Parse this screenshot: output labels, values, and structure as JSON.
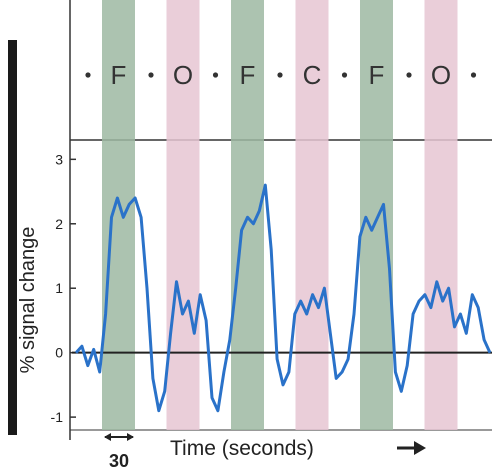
{
  "chart_data": {
    "type": "line",
    "title": "",
    "ylabel": "% signal change",
    "xlabel": "Time (seconds)",
    "time_scale_label": "30",
    "ylim": [
      -1.2,
      3.3
    ],
    "yticks": [
      -1,
      0,
      1,
      2,
      3
    ],
    "grid": false,
    "blocks": [
      {
        "condition": "F",
        "color": "#9eb8a2"
      },
      {
        "condition": "O",
        "color": "#e6c6d2"
      },
      {
        "condition": "F",
        "color": "#9eb8a2"
      },
      {
        "condition": "C",
        "color": "#e6c6d2"
      },
      {
        "condition": "F",
        "color": "#9eb8a2"
      },
      {
        "condition": "O",
        "color": "#e6c6d2"
      }
    ],
    "series": [
      {
        "color": "#2a72c9",
        "x": [
          0,
          6,
          12,
          18,
          24,
          30,
          36,
          42,
          48,
          54,
          60,
          66,
          72,
          78,
          84,
          90,
          96,
          102,
          108,
          114,
          120,
          126,
          132,
          138,
          144,
          150,
          156,
          162,
          168,
          174,
          180,
          186,
          192,
          198,
          204,
          210,
          216,
          222,
          228,
          234,
          240,
          246,
          252,
          258,
          264,
          270,
          276,
          282,
          288,
          294,
          300,
          306,
          312,
          318,
          324,
          330,
          336,
          342,
          348,
          354,
          360,
          366,
          372,
          378,
          384,
          390,
          396,
          402,
          408,
          414,
          420
        ],
        "y": [
          0.0,
          0.1,
          -0.2,
          0.05,
          -0.3,
          0.6,
          2.1,
          2.4,
          2.1,
          2.3,
          2.4,
          2.1,
          1.0,
          -0.4,
          -0.9,
          -0.6,
          0.3,
          1.1,
          0.6,
          0.8,
          0.3,
          0.9,
          0.5,
          -0.7,
          -0.9,
          -0.3,
          0.2,
          1.0,
          1.9,
          2.1,
          2.0,
          2.2,
          2.6,
          1.6,
          -0.1,
          -0.5,
          -0.3,
          0.6,
          0.8,
          0.6,
          0.9,
          0.7,
          1.0,
          0.3,
          -0.4,
          -0.3,
          -0.1,
          0.6,
          1.8,
          2.1,
          1.9,
          2.1,
          2.3,
          1.3,
          -0.3,
          -0.6,
          -0.2,
          0.6,
          0.8,
          0.9,
          0.7,
          1.1,
          0.8,
          1.0,
          0.4,
          0.6,
          0.3,
          0.9,
          0.7,
          0.2,
          0.0
        ]
      }
    ]
  }
}
